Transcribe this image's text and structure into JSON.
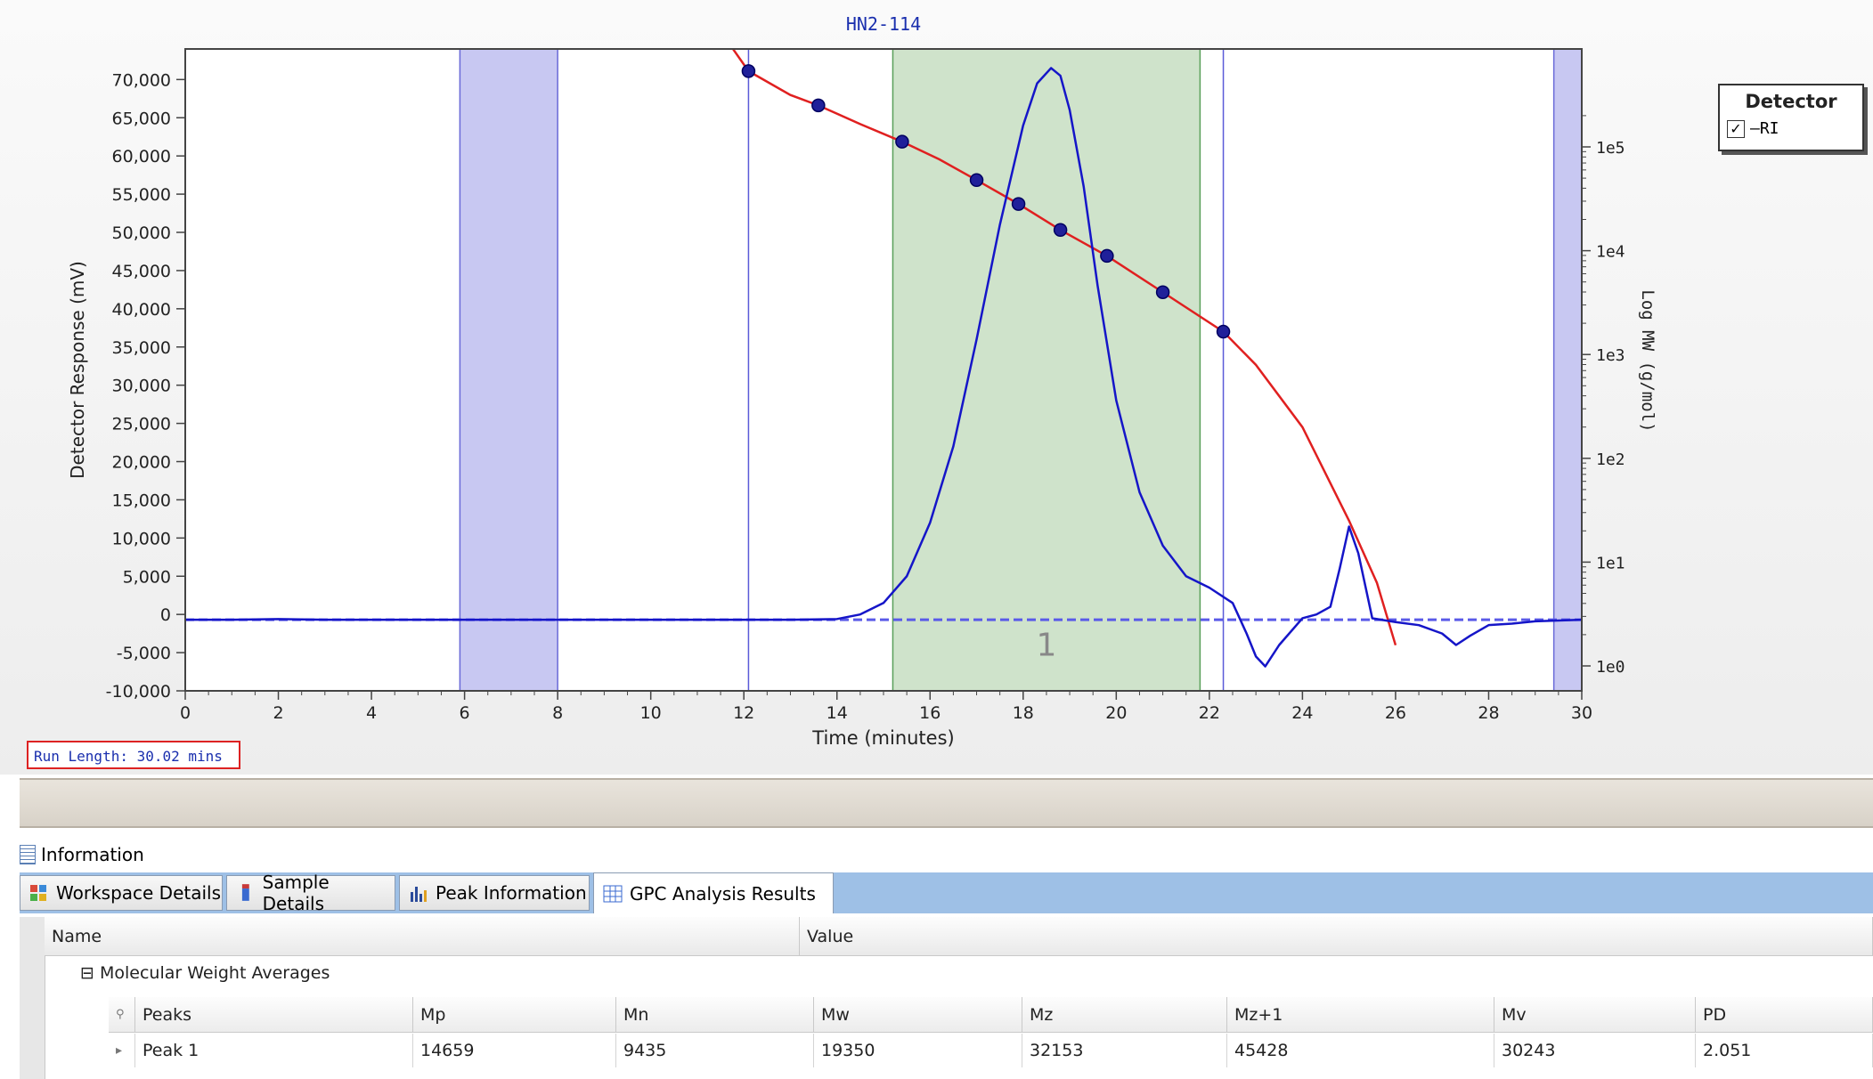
{
  "window": {
    "title": "HN2-114"
  },
  "chart_data": {
    "type": "line",
    "title": "HN2-114",
    "xlabel": "Time (minutes)",
    "ylabel": "Detector Response (mV)",
    "y2label": "Log MW (g/mol)",
    "xlim": [
      0,
      30
    ],
    "ylim": [
      -10000,
      74000
    ],
    "y2_scale": "log",
    "y2_ticks": [
      "1e0",
      "1e1",
      "1e2",
      "1e3",
      "1e4",
      "1e5"
    ],
    "xticks": [
      "0",
      "2",
      "4",
      "6",
      "8",
      "10",
      "12",
      "14",
      "16",
      "18",
      "20",
      "22",
      "24",
      "26",
      "28",
      "30"
    ],
    "yticks": [
      "70,000",
      "65,000",
      "60,000",
      "55,000",
      "50,000",
      "45,000",
      "40,000",
      "35,000",
      "30,000",
      "25,000",
      "20,000",
      "15,000",
      "10,000",
      "5,000",
      "0",
      "-5,000",
      "-10,000"
    ],
    "baseline_y": -700,
    "exclusion_regions": [
      [
        5.9,
        8.0
      ],
      [
        29.4,
        30.0
      ]
    ],
    "peak_region": [
      15.2,
      21.8
    ],
    "peak_label": "1",
    "markers_x": [
      12.1,
      22.3
    ],
    "series": [
      {
        "name": "RI",
        "color": "#1515c8",
        "x": [
          0,
          1,
          2,
          3,
          4,
          5,
          6,
          8,
          10,
          12,
          13,
          14,
          14.5,
          15,
          15.5,
          16,
          16.5,
          17,
          17.5,
          18,
          18.3,
          18.6,
          18.8,
          19,
          19.3,
          19.6,
          20,
          20.5,
          21,
          21.5,
          22,
          22.5,
          22.8,
          23,
          23.2,
          23.5,
          24,
          24.3,
          24.6,
          24.8,
          25,
          25.2,
          25.5,
          26,
          26.5,
          27,
          27.3,
          27.6,
          28,
          28.5,
          29,
          30
        ],
        "y": [
          -700,
          -700,
          -600,
          -700,
          -700,
          -700,
          -700,
          -700,
          -700,
          -700,
          -700,
          -600,
          0,
          1500,
          5000,
          12000,
          22000,
          36000,
          51000,
          64000,
          69500,
          71500,
          70500,
          66000,
          56000,
          43000,
          28000,
          16000,
          9000,
          5000,
          3500,
          1500,
          -2500,
          -5500,
          -6800,
          -4000,
          -500,
          0,
          1000,
          6000,
          11500,
          8000,
          -500,
          -1000,
          -1400,
          -2500,
          -4000,
          -2800,
          -1400,
          -1200,
          -900,
          -700
        ]
      },
      {
        "name": "Calibration",
        "color": "#e02020",
        "x": [
          11.6,
          12.1,
          13,
          13.6,
          14.5,
          15.4,
          16.2,
          17,
          17.9,
          18.8,
          19.8,
          21,
          22.3,
          23,
          24,
          25,
          25.6,
          26
        ],
        "logy": [
          6.05,
          5.73,
          5.5,
          5.4,
          5.22,
          5.05,
          4.88,
          4.68,
          4.45,
          4.2,
          3.95,
          3.6,
          3.22,
          2.9,
          2.3,
          1.4,
          0.8,
          0.2
        ]
      },
      {
        "name": "Calibration points",
        "color": "#20209a",
        "x": [
          12.1,
          13.6,
          15.4,
          17.0,
          17.9,
          18.8,
          19.8,
          21.0,
          22.3
        ],
        "logy": [
          5.73,
          5.4,
          5.05,
          4.68,
          4.45,
          4.2,
          3.95,
          3.6,
          3.22
        ]
      }
    ]
  },
  "legend": {
    "title": "Detector",
    "item": "RI",
    "checked": "✓"
  },
  "run_length": "Run Length: 30.02 mins",
  "info": {
    "title": "Information"
  },
  "tabs": [
    {
      "label": "Workspace Details",
      "icon": "workspace-icon"
    },
    {
      "label": "Sample Details",
      "icon": "sample-vial-icon"
    },
    {
      "label": "Peak Information",
      "icon": "peak-chart-icon"
    },
    {
      "label": "GPC Analysis Results",
      "icon": "grid-table-icon"
    }
  ],
  "grid": {
    "headers": [
      "Name",
      "Value"
    ],
    "group": "Molecular Weight Averages",
    "expander": "⊟",
    "columns": [
      "Peaks",
      "Mp",
      "Mn",
      "Mw",
      "Mz",
      "Mz+1",
      "Mv",
      "PD"
    ],
    "row": [
      "Peak 1",
      "14659",
      "9435",
      "19350",
      "32153",
      "45428",
      "30243",
      "2.051"
    ]
  }
}
